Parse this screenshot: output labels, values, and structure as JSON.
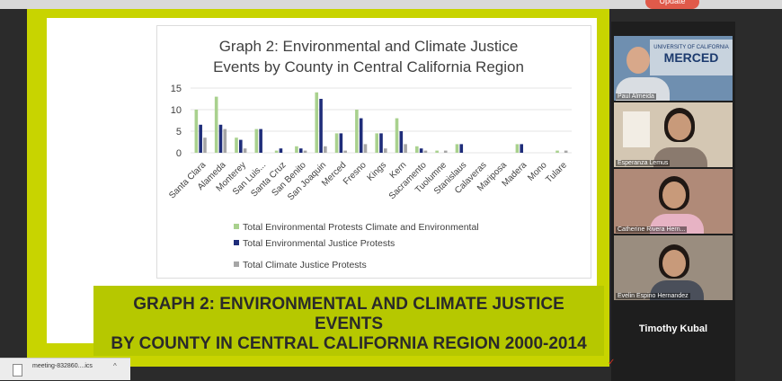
{
  "browser": {
    "update_label": "Update"
  },
  "slide": {
    "chart_title_line1": "Graph 2: Environmental and Climate Justice",
    "chart_title_line2": "Events by County in Central California Region",
    "banner_line1": "GRAPH 2: ENVIRONMENTAL AND CLIMATE JUSTICE EVENTS",
    "banner_line2": "BY COUNTY IN CENTRAL CALIFORNIA REGION 2000-2014"
  },
  "chart_data": {
    "type": "bar",
    "title": "Graph 2: Environmental and Climate Justice Events by County in Central California Region",
    "categories": [
      "Santa Clara",
      "Alameda",
      "Monterey",
      "San Luis...",
      "Santa Cruz",
      "San Benito",
      "San Joaquin",
      "Merced",
      "Fresno",
      "Kings",
      "Kern",
      "Sacramento",
      "Tuolumne",
      "Stanislaus",
      "Calaveras",
      "Mariposa",
      "Madera",
      "Mono",
      "Tulare"
    ],
    "ylim": [
      0,
      15
    ],
    "yticks": [
      0,
      5,
      10,
      15
    ],
    "grid": true,
    "legend_position": "bottom",
    "series": [
      {
        "name": "Total Environmental Protests Climate and Environmental",
        "color": "#a9d18e",
        "values": [
          10,
          13,
          3.5,
          5.5,
          0.5,
          1.5,
          14,
          4.5,
          10,
          4.5,
          8,
          1.5,
          0.5,
          2,
          0,
          0,
          2,
          0,
          0.5
        ]
      },
      {
        "name": "Total Environmental Justice Protests",
        "color": "#1f2d7a",
        "values": [
          6.5,
          6.5,
          3,
          5.5,
          1,
          1,
          12.5,
          4.5,
          8,
          4.5,
          5,
          1,
          0,
          2,
          0,
          0,
          2,
          0,
          0
        ]
      },
      {
        "name": "Total Climate Justice Protests",
        "color": "#a6a6a6",
        "values": [
          3.5,
          5.5,
          1,
          0,
          0,
          0.5,
          1.5,
          0.5,
          2,
          1,
          2,
          0.5,
          0.5,
          0,
          0,
          0,
          0,
          0,
          0.5
        ]
      }
    ]
  },
  "participants": [
    {
      "name": "Paul Almeida"
    },
    {
      "name": "Esperanza Lemus"
    },
    {
      "name": "Catherine Rivera Hern..."
    },
    {
      "name": "Evelin Espino Hernandez"
    },
    {
      "name": "Timothy Kubal"
    }
  ],
  "tile1_backdrop": {
    "line1": "UNIVERSITY OF CALIFORNIA",
    "line2": "MERCED"
  },
  "downloads": {
    "file_name": "meeting-832860....ics",
    "chevron": "^"
  }
}
